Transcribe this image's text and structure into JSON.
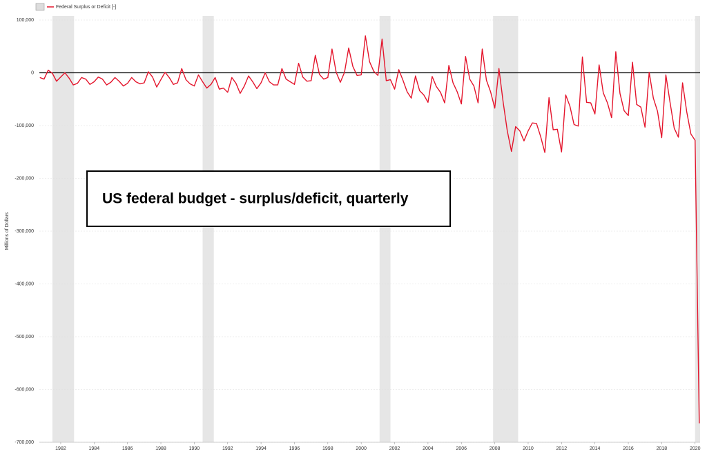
{
  "chart_data": {
    "type": "line",
    "legend": "Federal Surplus or Deficit [-]",
    "ylabel": "Millions of Dollars",
    "annotation": "US federal budget - surplus/deficit, quarterly",
    "series": [
      {
        "name": "Federal Surplus or Deficit [-]",
        "color": "#e4152c",
        "x": [
          1980.75,
          1981,
          1981.25,
          1981.5,
          1981.75,
          1982,
          1982.25,
          1982.5,
          1982.75,
          1983,
          1983.25,
          1983.5,
          1983.75,
          1984,
          1984.25,
          1984.5,
          1984.75,
          1985,
          1985.25,
          1985.5,
          1985.75,
          1986,
          1986.25,
          1986.5,
          1986.75,
          1987,
          1987.25,
          1987.5,
          1987.75,
          1988,
          1988.25,
          1988.5,
          1988.75,
          1989,
          1989.25,
          1989.5,
          1989.75,
          1990,
          1990.25,
          1990.5,
          1990.75,
          1991,
          1991.25,
          1991.5,
          1991.75,
          1992,
          1992.25,
          1992.5,
          1992.75,
          1993,
          1993.25,
          1993.5,
          1993.75,
          1994,
          1994.25,
          1994.5,
          1994.75,
          1995,
          1995.25,
          1995.5,
          1995.75,
          1996,
          1996.25,
          1996.5,
          1996.75,
          1997,
          1997.25,
          1997.5,
          1997.75,
          1998,
          1998.25,
          1998.5,
          1998.75,
          1999,
          1999.25,
          1999.5,
          1999.75,
          2000,
          2000.25,
          2000.5,
          2000.75,
          2001,
          2001.25,
          2001.5,
          2001.75,
          2002,
          2002.25,
          2002.5,
          2002.75,
          2003,
          2003.25,
          2003.5,
          2003.75,
          2004,
          2004.25,
          2004.5,
          2004.75,
          2005,
          2005.25,
          2005.5,
          2005.75,
          2006,
          2006.25,
          2006.5,
          2006.75,
          2007,
          2007.25,
          2007.5,
          2007.75,
          2008,
          2008.25,
          2008.5,
          2008.75,
          2009,
          2009.25,
          2009.5,
          2009.75,
          2010,
          2010.25,
          2010.5,
          2010.75,
          2011,
          2011.25,
          2011.5,
          2011.75,
          2012,
          2012.25,
          2012.5,
          2012.75,
          2013,
          2013.25,
          2013.5,
          2013.75,
          2014,
          2014.25,
          2014.5,
          2014.75,
          2015,
          2015.25,
          2015.5,
          2015.75,
          2016,
          2016.25,
          2016.5,
          2016.75,
          2017,
          2017.25,
          2017.5,
          2017.75,
          2018,
          2018.25,
          2018.5,
          2018.75,
          2019,
          2019.25,
          2019.5,
          2019.75,
          2020,
          2020.25
        ],
        "values": [
          -9000,
          -12000,
          5000,
          -1000,
          -16000,
          -8000,
          0,
          -10000,
          -23000,
          -20000,
          -9000,
          -12000,
          -22000,
          -17000,
          -8000,
          -12000,
          -23000,
          -18000,
          -9000,
          -16000,
          -25000,
          -20000,
          -9000,
          -17000,
          -21000,
          -19000,
          2000,
          -8000,
          -27000,
          -13000,
          1000,
          -9000,
          -22000,
          -19000,
          8000,
          -13000,
          -21000,
          -25000,
          -4000,
          -17000,
          -29000,
          -22000,
          -9000,
          -31000,
          -29000,
          -37000,
          -9000,
          -20000,
          -39000,
          -25000,
          -6000,
          -17000,
          -30000,
          -19000,
          0,
          -17000,
          -23000,
          -23000,
          8000,
          -12000,
          -17000,
          -22000,
          18000,
          -8000,
          -16000,
          -15000,
          33000,
          -3000,
          -12000,
          -9000,
          45000,
          1000,
          -18000,
          1000,
          47000,
          12000,
          -5000,
          -4000,
          70000,
          21000,
          3000,
          -5000,
          64000,
          -15000,
          -13000,
          -31000,
          6000,
          -14000,
          -36000,
          -48000,
          -6000,
          -34000,
          -42000,
          -56000,
          -7000,
          -26000,
          -37000,
          -57000,
          14000,
          -19000,
          -36000,
          -59000,
          31000,
          -12000,
          -25000,
          -57000,
          45000,
          -14000,
          -36000,
          -67000,
          8000,
          -55000,
          -110000,
          -149000,
          -102000,
          -110000,
          -129000,
          -110000,
          -95000,
          -96000,
          -121000,
          -151000,
          -47000,
          -108000,
          -107000,
          -150000,
          -42000,
          -63000,
          -98000,
          -101000,
          30000,
          -56000,
          -57000,
          -78000,
          15000,
          -38000,
          -57000,
          -85000,
          40000,
          -39000,
          -72000,
          -81000,
          20000,
          -60000,
          -65000,
          -103000,
          1000,
          -48000,
          -73000,
          -123000,
          -4000,
          -56000,
          -105000,
          -122000,
          -19000,
          -74000,
          -116000,
          -128000,
          -664000
        ]
      }
    ],
    "recessions": [
      [
        1981.5,
        1982.8
      ],
      [
        1990.5,
        1991.17
      ],
      [
        2001.1,
        2001.75
      ],
      [
        2007.9,
        2009.4
      ],
      [
        2020,
        2020.3
      ]
    ],
    "recession_color": "#e6e6e6",
    "xlim": [
      1980.72,
      2020.3
    ],
    "xticks": [
      1982,
      1984,
      1986,
      1988,
      1990,
      1992,
      1994,
      1996,
      1998,
      2000,
      2002,
      2004,
      2006,
      2008,
      2010,
      2012,
      2014,
      2016,
      2018,
      2020
    ],
    "ylim": [
      -700000,
      100000
    ],
    "yticks": [
      {
        "value": 100000,
        "label": "100,000"
      },
      0,
      {
        "value": -100000,
        "label": "-100,000"
      },
      {
        "value": -200000,
        "label": "-200,000"
      },
      {
        "value": -300000,
        "label": "-300,000"
      },
      {
        "value": -400000,
        "label": "-400,000"
      },
      {
        "value": -500000,
        "label": "-500,000"
      },
      {
        "value": -600000,
        "label": "-600,000"
      },
      {
        "value": -700000,
        "label": "-700,000"
      }
    ],
    "grid": true
  }
}
